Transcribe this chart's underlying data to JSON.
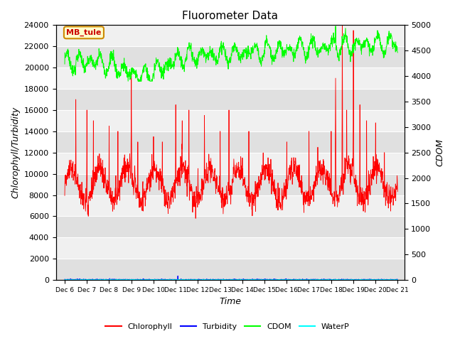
{
  "title": "Fluorometer Data",
  "xlabel": "Time",
  "ylabel_left": "Chlorophyll/Turbidity",
  "ylabel_right": "CDOM",
  "ylim_left": [
    0,
    24000
  ],
  "ylim_right": [
    0,
    5000
  ],
  "yticks_left": [
    0,
    2000,
    4000,
    6000,
    8000,
    10000,
    12000,
    14000,
    16000,
    18000,
    20000,
    22000,
    24000
  ],
  "yticks_right": [
    0,
    500,
    1000,
    1500,
    2000,
    2500,
    3000,
    3500,
    4000,
    4500,
    5000
  ],
  "xtick_positions": [
    6,
    7,
    8,
    9,
    10,
    11,
    12,
    13,
    14,
    15,
    16,
    17,
    18,
    19,
    20,
    21
  ],
  "xtick_labels": [
    "Dec 6",
    "Dec 7",
    "Dec 8",
    "Dec 9",
    "Dec 10",
    "Dec 11",
    "Dec 12",
    "Dec 13",
    "Dec 14",
    "Dec 15",
    "Dec 16",
    "Dec 17",
    "Dec 18",
    "Dec 19",
    "Dec 20",
    "Dec 21"
  ],
  "legend_labels": [
    "Chlorophyll",
    "Turbidity",
    "CDOM",
    "WaterP"
  ],
  "legend_colors": [
    "red",
    "blue",
    "lime",
    "cyan"
  ],
  "annotation_text": "MB_tule",
  "annotation_color": "#cc0000",
  "annotation_bg": "#ffffcc",
  "annotation_border": "#cc8800",
  "fig_bg": "white",
  "plot_bg_light": "#f0f0f0",
  "plot_bg_dark": "#e0e0e0",
  "grid_color": "white",
  "title_fontsize": 11,
  "label_fontsize": 9,
  "tick_fontsize": 8
}
